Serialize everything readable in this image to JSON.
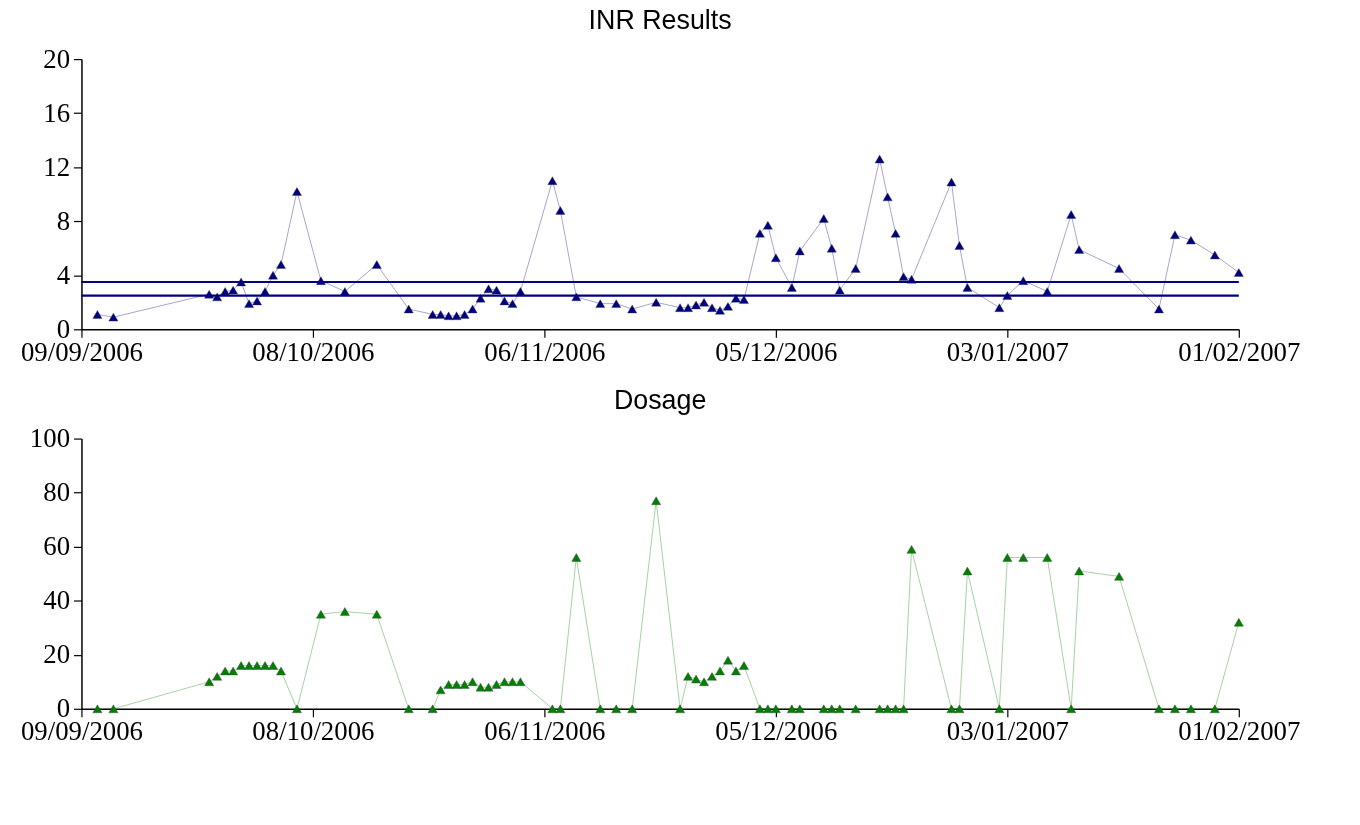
{
  "chart_data": [
    {
      "type": "line",
      "title": "INR Results",
      "marker": "triangle",
      "grid": false,
      "x": [
        "2006-09-11",
        "2006-09-13",
        "2006-09-25",
        "2006-09-26",
        "2006-09-27",
        "2006-09-28",
        "2006-09-29",
        "2006-09-30",
        "2006-10-01",
        "2006-10-02",
        "2006-10-03",
        "2006-10-04",
        "2006-10-06",
        "2006-10-09",
        "2006-10-12",
        "2006-10-16",
        "2006-10-20",
        "2006-10-23",
        "2006-10-24",
        "2006-10-25",
        "2006-10-26",
        "2006-10-27",
        "2006-10-28",
        "2006-10-29",
        "2006-10-30",
        "2006-10-31",
        "2006-11-01",
        "2006-11-02",
        "2006-11-03",
        "2006-11-07",
        "2006-11-08",
        "2006-11-10",
        "2006-11-13",
        "2006-11-15",
        "2006-11-17",
        "2006-11-20",
        "2006-11-23",
        "2006-11-24",
        "2006-11-25",
        "2006-11-26",
        "2006-11-27",
        "2006-11-28",
        "2006-11-29",
        "2006-11-30",
        "2006-12-01",
        "2006-12-03",
        "2006-12-04",
        "2006-12-05",
        "2006-12-07",
        "2006-12-08",
        "2006-12-11",
        "2006-12-12",
        "2006-12-13",
        "2006-12-15",
        "2006-12-18",
        "2006-12-19",
        "2006-12-20",
        "2006-12-21",
        "2006-12-22",
        "2006-12-27",
        "2006-12-28",
        "2006-12-29",
        "2007-01-02",
        "2007-01-03",
        "2007-01-05",
        "2007-01-08",
        "2007-01-11",
        "2007-01-12",
        "2007-01-17",
        "2007-01-22",
        "2007-01-24",
        "2007-01-26",
        "2007-01-29",
        "2007-02-01"
      ],
      "series": [
        {
          "color": "#000080",
          "values": [
            1.1,
            0.9,
            2.6,
            2.4,
            2.8,
            2.9,
            3.5,
            1.9,
            2.1,
            2.8,
            4.0,
            4.8,
            10.2,
            3.6,
            2.8,
            4.8,
            1.5,
            1.1,
            1.1,
            1.0,
            1.0,
            1.1,
            1.5,
            2.3,
            3.0,
            2.9,
            2.1,
            1.9,
            2.8,
            11.0,
            8.8,
            2.4,
            1.9,
            1.9,
            1.5,
            2.0,
            1.6,
            1.6,
            1.8,
            2.0,
            1.6,
            1.4,
            1.7,
            2.3,
            2.2,
            7.1,
            7.7,
            5.3,
            3.1,
            5.8,
            8.2,
            6.0,
            2.9,
            4.5,
            12.6,
            9.8,
            7.1,
            3.9,
            3.7,
            10.9,
            6.2,
            3.1,
            1.6,
            2.5,
            3.6,
            2.8,
            8.5,
            5.9,
            4.5,
            1.5,
            7.0,
            6.6,
            5.5,
            4.2
          ]
        }
      ],
      "ref_lines": [
        {
          "axis": "y",
          "value": 3.5,
          "color": "#000080"
        },
        {
          "axis": "y",
          "value": 2.5,
          "color": "#000080"
        }
      ],
      "ylim": [
        0,
        20
      ],
      "yticks": [
        0,
        4,
        8,
        12,
        16,
        20
      ],
      "xlim": [
        "2006-09-09",
        "2007-02-01"
      ],
      "xticks": [
        {
          "value": "2006-09-09",
          "label": "09/09/2006"
        },
        {
          "value": "2006-10-08",
          "label": "08/10/2006"
        },
        {
          "value": "2006-11-06",
          "label": "06/11/2006"
        },
        {
          "value": "2006-12-05",
          "label": "05/12/2006"
        },
        {
          "value": "2007-01-03",
          "label": "03/01/2007"
        },
        {
          "value": "2007-02-01",
          "label": "01/02/2007"
        }
      ]
    },
    {
      "type": "line",
      "title": "Dosage",
      "marker": "triangle",
      "grid": false,
      "x": [
        "2006-09-11",
        "2006-09-13",
        "2006-09-25",
        "2006-09-26",
        "2006-09-27",
        "2006-09-28",
        "2006-09-29",
        "2006-09-30",
        "2006-10-01",
        "2006-10-02",
        "2006-10-03",
        "2006-10-04",
        "2006-10-06",
        "2006-10-09",
        "2006-10-12",
        "2006-10-16",
        "2006-10-20",
        "2006-10-23",
        "2006-10-24",
        "2006-10-25",
        "2006-10-26",
        "2006-10-27",
        "2006-10-28",
        "2006-10-29",
        "2006-10-30",
        "2006-10-31",
        "2006-11-01",
        "2006-11-02",
        "2006-11-03",
        "2006-11-07",
        "2006-11-08",
        "2006-11-10",
        "2006-11-13",
        "2006-11-15",
        "2006-11-17",
        "2006-11-20",
        "2006-11-23",
        "2006-11-24",
        "2006-11-25",
        "2006-11-26",
        "2006-11-27",
        "2006-11-28",
        "2006-11-29",
        "2006-11-30",
        "2006-12-01",
        "2006-12-03",
        "2006-12-04",
        "2006-12-05",
        "2006-12-07",
        "2006-12-08",
        "2006-12-11",
        "2006-12-12",
        "2006-12-13",
        "2006-12-15",
        "2006-12-18",
        "2006-12-19",
        "2006-12-20",
        "2006-12-21",
        "2006-12-22",
        "2006-12-27",
        "2006-12-28",
        "2006-12-29",
        "2007-01-02",
        "2007-01-03",
        "2007-01-05",
        "2007-01-08",
        "2007-01-11",
        "2007-01-12",
        "2007-01-17",
        "2007-01-22",
        "2007-01-24",
        "2007-01-26",
        "2007-01-29",
        "2007-02-01"
      ],
      "series": [
        {
          "color": "#008000",
          "values": [
            0,
            0,
            10,
            12,
            14,
            14,
            16,
            16,
            16,
            16,
            16,
            14,
            0,
            35,
            36,
            35,
            0,
            0,
            7,
            9,
            9,
            9,
            10,
            8,
            8,
            9,
            10,
            10,
            10,
            0,
            0,
            56,
            0,
            0,
            0,
            77,
            0,
            12,
            11,
            10,
            12,
            14,
            18,
            14,
            16,
            0,
            0,
            0,
            0,
            0,
            0,
            0,
            0,
            0,
            0,
            0,
            0,
            0,
            59,
            0,
            0,
            51,
            0,
            56,
            56,
            56,
            0,
            51,
            49,
            0,
            0,
            0,
            0,
            32
          ]
        }
      ],
      "ylim": [
        0,
        100
      ],
      "yticks": [
        0,
        20,
        40,
        60,
        80,
        100
      ],
      "xlim": [
        "2006-09-09",
        "2007-02-01"
      ],
      "xticks": [
        {
          "value": "2006-09-09",
          "label": "09/09/2006"
        },
        {
          "value": "2006-10-08",
          "label": "08/10/2006"
        },
        {
          "value": "2006-11-06",
          "label": "06/11/2006"
        },
        {
          "value": "2006-12-05",
          "label": "05/12/2006"
        },
        {
          "value": "2007-01-03",
          "label": "03/01/2007"
        },
        {
          "value": "2007-02-01",
          "label": "01/02/2007"
        }
      ]
    }
  ]
}
